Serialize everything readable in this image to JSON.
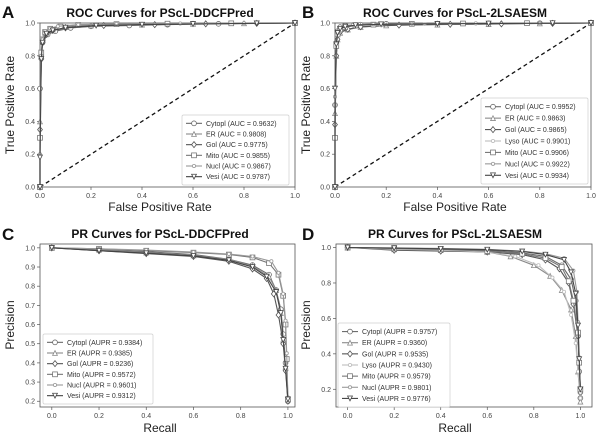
{
  "chart_data": [
    {
      "id": "A",
      "panel_letter": "A",
      "type": "line",
      "title": "ROC Curves for PScL-DDCFPred",
      "xlabel": "False Positive Rate",
      "ylabel": "True Positive Rate",
      "xlim": [
        0,
        1
      ],
      "ylim": [
        0,
        1
      ],
      "xticks": [
        "0.0",
        "0.2",
        "0.4",
        "0.6",
        "0.8",
        "1.0"
      ],
      "yticks": [
        "0.0",
        "0.2",
        "0.4",
        "0.6",
        "0.8",
        "1.0"
      ],
      "grid": false,
      "legend_position": "lower-right",
      "diagonal": true,
      "series": [
        {
          "name": "Cytopl",
          "label": "Cytopl (AUC = 0.9632)",
          "auc": 0.9632,
          "color": "#6b6b6b",
          "marker": "circle",
          "x": [
            0,
            0,
            0.005,
            0.01,
            0.03,
            0.06,
            0.12,
            0.2,
            0.35,
            0.5,
            0.7,
            1.0
          ],
          "y": [
            0,
            0.6,
            0.8,
            0.88,
            0.93,
            0.95,
            0.97,
            0.98,
            0.985,
            0.99,
            0.995,
            1.0
          ]
        },
        {
          "name": "ER",
          "label": "ER (AUC = 0.9808)",
          "auc": 0.9808,
          "color": "#8a8a8a",
          "marker": "triangle-up",
          "x": [
            0,
            0,
            0.005,
            0.01,
            0.02,
            0.05,
            0.1,
            0.2,
            0.4,
            0.6,
            0.8,
            1.0
          ],
          "y": [
            0,
            0.4,
            0.8,
            0.9,
            0.94,
            0.96,
            0.975,
            0.985,
            0.99,
            0.995,
            0.998,
            1.0
          ]
        },
        {
          "name": "Gol",
          "label": "Gol (AUC = 0.9775)",
          "auc": 0.9775,
          "color": "#555555",
          "marker": "diamond",
          "x": [
            0,
            0,
            0.005,
            0.01,
            0.025,
            0.05,
            0.1,
            0.25,
            0.45,
            0.65,
            0.85,
            1.0
          ],
          "y": [
            0,
            0.35,
            0.78,
            0.88,
            0.93,
            0.955,
            0.97,
            0.985,
            0.99,
            0.995,
            0.998,
            1.0
          ]
        },
        {
          "name": "Mito",
          "label": "Mito (AUC = 0.9855)",
          "auc": 0.9855,
          "color": "#777777",
          "marker": "square",
          "x": [
            0,
            0,
            0.005,
            0.01,
            0.02,
            0.04,
            0.08,
            0.15,
            0.3,
            0.5,
            0.75,
            1.0
          ],
          "y": [
            0,
            0.3,
            0.82,
            0.9,
            0.945,
            0.965,
            0.978,
            0.988,
            0.993,
            0.996,
            0.998,
            1.0
          ]
        },
        {
          "name": "Nucl",
          "label": "Nucl (AUC = 0.9867)",
          "auc": 0.9867,
          "color": "#999999",
          "marker": "small-circle",
          "x": [
            0,
            0,
            0.005,
            0.01,
            0.02,
            0.04,
            0.07,
            0.15,
            0.3,
            0.55,
            0.8,
            1.0
          ],
          "y": [
            0,
            0.2,
            0.8,
            0.9,
            0.95,
            0.968,
            0.98,
            0.99,
            0.994,
            0.997,
            0.999,
            1.0
          ]
        },
        {
          "name": "Vesi",
          "label": "Vesi (AUC = 0.9787)",
          "auc": 0.9787,
          "color": "#444444",
          "marker": "triangle-down",
          "x": [
            0,
            0,
            0.005,
            0.01,
            0.025,
            0.05,
            0.1,
            0.22,
            0.4,
            0.6,
            0.85,
            1.0
          ],
          "y": [
            0,
            0.18,
            0.78,
            0.88,
            0.935,
            0.955,
            0.972,
            0.984,
            0.99,
            0.994,
            0.998,
            1.0
          ]
        }
      ]
    },
    {
      "id": "B",
      "panel_letter": "B",
      "type": "line",
      "title": "ROC Curves for PScL-2LSAESM",
      "xlabel": "False Positive Rate",
      "ylabel": "True Positive Rate",
      "xlim": [
        0,
        1
      ],
      "ylim": [
        0,
        1
      ],
      "xticks": [
        "0.0",
        "0.2",
        "0.4",
        "0.6",
        "0.8",
        "1.0"
      ],
      "yticks": [
        "0.0",
        "0.2",
        "0.4",
        "0.6",
        "0.8",
        "1.0"
      ],
      "grid": false,
      "legend_position": "lower-right",
      "diagonal": true,
      "series": [
        {
          "name": "Cytopl",
          "label": "Cytopl (AUC = 0.9952)",
          "auc": 0.9952,
          "color": "#6b6b6b",
          "marker": "circle",
          "x": [
            0,
            0,
            0.005,
            0.01,
            0.02,
            0.04,
            0.1,
            0.2,
            0.4,
            0.6,
            0.8,
            1.0
          ],
          "y": [
            0,
            0.5,
            0.88,
            0.95,
            0.975,
            0.985,
            0.99,
            0.995,
            0.997,
            0.998,
            0.999,
            1.0
          ]
        },
        {
          "name": "ER",
          "label": "ER (AUC = 0.9863)",
          "auc": 0.9863,
          "color": "#8a8a8a",
          "marker": "triangle-up",
          "x": [
            0,
            0,
            0.005,
            0.01,
            0.02,
            0.05,
            0.1,
            0.2,
            0.4,
            0.6,
            0.8,
            1.0
          ],
          "y": [
            0,
            0.45,
            0.8,
            0.9,
            0.94,
            0.96,
            0.975,
            0.985,
            0.99,
            0.993,
            0.997,
            1.0
          ]
        },
        {
          "name": "Gol",
          "label": "Gol (AUC = 0.9865)",
          "auc": 0.9865,
          "color": "#555555",
          "marker": "diamond",
          "x": [
            0,
            0,
            0.005,
            0.01,
            0.02,
            0.05,
            0.1,
            0.25,
            0.45,
            0.65,
            0.85,
            1.0
          ],
          "y": [
            0,
            0.38,
            0.8,
            0.9,
            0.945,
            0.962,
            0.977,
            0.987,
            0.992,
            0.995,
            0.998,
            1.0
          ]
        },
        {
          "name": "Lyso",
          "label": "Lyso (AUC = 0.9901)",
          "auc": 0.9901,
          "color": "#bdbdbd",
          "marker": "small-circle",
          "x": [
            0,
            0,
            0.005,
            0.01,
            0.02,
            0.04,
            0.08,
            0.18,
            0.35,
            0.55,
            0.8,
            1.0
          ],
          "y": [
            0,
            0.5,
            0.85,
            0.93,
            0.96,
            0.975,
            0.985,
            0.99,
            0.994,
            0.997,
            0.999,
            1.0
          ]
        },
        {
          "name": "Mito",
          "label": "Mito (AUC = 0.9906)",
          "auc": 0.9906,
          "color": "#777777",
          "marker": "square",
          "x": [
            0,
            0,
            0.005,
            0.01,
            0.02,
            0.04,
            0.08,
            0.15,
            0.3,
            0.5,
            0.75,
            1.0
          ],
          "y": [
            0,
            0.3,
            0.86,
            0.93,
            0.96,
            0.975,
            0.985,
            0.99,
            0.995,
            0.997,
            0.999,
            1.0
          ]
        },
        {
          "name": "Nucl",
          "label": "Nucl (AUC = 0.9922)",
          "auc": 0.9922,
          "color": "#999999",
          "marker": "small-circle",
          "x": [
            0,
            0,
            0.005,
            0.01,
            0.02,
            0.04,
            0.07,
            0.15,
            0.3,
            0.55,
            0.8,
            1.0
          ],
          "y": [
            0,
            0.55,
            0.88,
            0.94,
            0.97,
            0.98,
            0.988,
            0.993,
            0.996,
            0.998,
            0.999,
            1.0
          ]
        },
        {
          "name": "Vesi",
          "label": "Vesi (AUC = 0.9934)",
          "auc": 0.9934,
          "color": "#444444",
          "marker": "triangle-down",
          "x": [
            0,
            0,
            0.005,
            0.01,
            0.02,
            0.04,
            0.08,
            0.18,
            0.4,
            0.6,
            0.85,
            1.0
          ],
          "y": [
            0,
            0.6,
            0.87,
            0.94,
            0.965,
            0.978,
            0.987,
            0.992,
            0.995,
            0.997,
            0.999,
            1.0
          ]
        }
      ]
    },
    {
      "id": "C",
      "panel_letter": "C",
      "type": "line",
      "title": "PR Curves for PScL-DDCFPred",
      "xlabel": "Recall",
      "ylabel": "Precision",
      "xlim": [
        -0.05,
        1.03
      ],
      "ylim": [
        0.17,
        1.02
      ],
      "xticks": [
        "0.0",
        "0.2",
        "0.4",
        "0.6",
        "0.8",
        "1.0"
      ],
      "yticks": [
        "0.2",
        "0.3",
        "0.4",
        "0.5",
        "0.6",
        "0.7",
        "0.8",
        "0.9",
        "1.0"
      ],
      "grid": false,
      "legend_position": "lower-left",
      "diagonal": false,
      "series": [
        {
          "name": "Cytopl",
          "label": "Cytopl (AUPR = 0.9384)",
          "aupr": 0.9384,
          "color": "#6b6b6b",
          "marker": "circle",
          "x": [
            0,
            0.2,
            0.4,
            0.6,
            0.75,
            0.85,
            0.92,
            0.95,
            0.97,
            0.98,
            0.99,
            1.0
          ],
          "y": [
            1.0,
            0.99,
            0.98,
            0.965,
            0.94,
            0.91,
            0.86,
            0.78,
            0.68,
            0.55,
            0.4,
            0.2
          ]
        },
        {
          "name": "ER",
          "label": "ER (AUPR = 0.9385)",
          "aupr": 0.9385,
          "color": "#8a8a8a",
          "marker": "triangle-up",
          "x": [
            0,
            0.2,
            0.4,
            0.6,
            0.75,
            0.85,
            0.92,
            0.95,
            0.97,
            0.98,
            0.99,
            1.0
          ],
          "y": [
            1.0,
            0.99,
            0.975,
            0.96,
            0.94,
            0.905,
            0.85,
            0.78,
            0.66,
            0.52,
            0.38,
            0.22
          ]
        },
        {
          "name": "Gol",
          "label": "Gol (AUPR = 0.9236)",
          "aupr": 0.9236,
          "color": "#555555",
          "marker": "diamond",
          "x": [
            0,
            0.2,
            0.4,
            0.6,
            0.75,
            0.85,
            0.91,
            0.94,
            0.96,
            0.98,
            0.99,
            1.0
          ],
          "y": [
            1.0,
            0.985,
            0.97,
            0.955,
            0.93,
            0.89,
            0.84,
            0.76,
            0.65,
            0.5,
            0.36,
            0.2
          ]
        },
        {
          "name": "Mito",
          "label": "Mito (AUPR = 0.9572)",
          "aupr": 0.9572,
          "color": "#777777",
          "marker": "square",
          "x": [
            0,
            0.2,
            0.4,
            0.6,
            0.75,
            0.85,
            0.92,
            0.96,
            0.98,
            0.99,
            0.995,
            1.0
          ],
          "y": [
            1.0,
            0.995,
            0.985,
            0.975,
            0.965,
            0.95,
            0.92,
            0.86,
            0.75,
            0.6,
            0.42,
            0.21
          ]
        },
        {
          "name": "Nucl",
          "label": "Nucl (AUPR = 0.9601)",
          "aupr": 0.9601,
          "color": "#999999",
          "marker": "small-circle",
          "x": [
            0,
            0.2,
            0.4,
            0.6,
            0.75,
            0.85,
            0.93,
            0.96,
            0.98,
            0.99,
            0.995,
            1.0
          ],
          "y": [
            1.0,
            0.995,
            0.988,
            0.978,
            0.968,
            0.955,
            0.93,
            0.87,
            0.76,
            0.62,
            0.45,
            0.22
          ]
        },
        {
          "name": "Vesi",
          "label": "Vesi (AUPR = 0.9312)",
          "aupr": 0.9312,
          "color": "#444444",
          "marker": "triangle-down",
          "x": [
            0,
            0.2,
            0.4,
            0.6,
            0.75,
            0.85,
            0.91,
            0.95,
            0.97,
            0.98,
            0.99,
            1.0
          ],
          "y": [
            1.0,
            0.985,
            0.972,
            0.958,
            0.935,
            0.9,
            0.85,
            0.77,
            0.66,
            0.52,
            0.37,
            0.21
          ]
        }
      ]
    },
    {
      "id": "D",
      "panel_letter": "D",
      "type": "line",
      "title": "PR Curves for PScL-2LSAESM",
      "xlabel": "Recall",
      "ylabel": "Precision",
      "xlim": [
        -0.05,
        1.05
      ],
      "ylim": [
        0.1,
        1.02
      ],
      "xticks": [
        "0.0",
        "0.2",
        "0.4",
        "0.6",
        "0.8",
        "1.0"
      ],
      "yticks": [
        "0.2",
        "0.4",
        "0.6",
        "0.8",
        "1.0"
      ],
      "grid": false,
      "legend_position": "lower-left",
      "diagonal": false,
      "series": [
        {
          "name": "Cytopl",
          "label": "Cytopl (AUPR = 0.9757)",
          "aupr": 0.9757,
          "color": "#6b6b6b",
          "marker": "circle",
          "x": [
            0,
            0.2,
            0.4,
            0.6,
            0.75,
            0.85,
            0.92,
            0.96,
            0.98,
            0.99,
            0.995,
            1.0
          ],
          "y": [
            1.0,
            0.995,
            0.99,
            0.985,
            0.97,
            0.95,
            0.9,
            0.82,
            0.7,
            0.5,
            0.3,
            0.15
          ]
        },
        {
          "name": "ER",
          "label": "ER (AUPR = 0.9360)",
          "aupr": 0.936,
          "color": "#8a8a8a",
          "marker": "triangle-up",
          "x": [
            0,
            0.2,
            0.4,
            0.6,
            0.7,
            0.8,
            0.87,
            0.92,
            0.96,
            0.98,
            0.99,
            1.0
          ],
          "y": [
            1.0,
            0.99,
            0.985,
            0.975,
            0.95,
            0.9,
            0.84,
            0.76,
            0.65,
            0.5,
            0.3,
            0.13
          ]
        },
        {
          "name": "Gol",
          "label": "Gol (AUPR = 0.9535)",
          "aupr": 0.9535,
          "color": "#555555",
          "marker": "diamond",
          "x": [
            0,
            0.2,
            0.4,
            0.6,
            0.75,
            0.85,
            0.91,
            0.95,
            0.97,
            0.99,
            0.995,
            1.0
          ],
          "y": [
            1.0,
            0.985,
            0.98,
            0.975,
            0.96,
            0.93,
            0.88,
            0.8,
            0.68,
            0.5,
            0.35,
            0.18
          ]
        },
        {
          "name": "Lyso",
          "label": "Lyso (AUPR = 0.9430)",
          "aupr": 0.943,
          "color": "#bdbdbd",
          "marker": "small-circle",
          "x": [
            0,
            0.2,
            0.4,
            0.6,
            0.72,
            0.82,
            0.88,
            0.93,
            0.96,
            0.98,
            0.99,
            1.0
          ],
          "y": [
            1.0,
            0.99,
            0.985,
            0.975,
            0.95,
            0.9,
            0.83,
            0.75,
            0.62,
            0.46,
            0.3,
            0.15
          ]
        },
        {
          "name": "Mito",
          "label": "Mito (AUPR = 0.9579)",
          "aupr": 0.9579,
          "color": "#777777",
          "marker": "square",
          "x": [
            0,
            0.2,
            0.4,
            0.6,
            0.75,
            0.85,
            0.92,
            0.95,
            0.97,
            0.99,
            0.995,
            1.0
          ],
          "y": [
            1.0,
            0.995,
            0.99,
            0.98,
            0.965,
            0.94,
            0.89,
            0.81,
            0.7,
            0.52,
            0.35,
            0.2
          ]
        },
        {
          "name": "Nucl",
          "label": "Nucl (AUPR = 0.9801)",
          "aupr": 0.9801,
          "color": "#999999",
          "marker": "small-circle",
          "x": [
            0,
            0.2,
            0.4,
            0.6,
            0.75,
            0.85,
            0.93,
            0.97,
            0.985,
            0.99,
            0.995,
            1.0
          ],
          "y": [
            1.0,
            0.998,
            0.995,
            0.99,
            0.98,
            0.965,
            0.94,
            0.87,
            0.75,
            0.58,
            0.38,
            0.18
          ]
        },
        {
          "name": "Vesi",
          "label": "Vesi (AUPR = 0.9776)",
          "aupr": 0.9776,
          "color": "#444444",
          "marker": "triangle-down",
          "x": [
            0,
            0.2,
            0.4,
            0.6,
            0.75,
            0.85,
            0.93,
            0.96,
            0.98,
            0.99,
            0.995,
            1.0
          ],
          "y": [
            1.0,
            0.997,
            0.993,
            0.988,
            0.978,
            0.96,
            0.93,
            0.86,
            0.74,
            0.56,
            0.37,
            0.2
          ]
        }
      ]
    }
  ]
}
